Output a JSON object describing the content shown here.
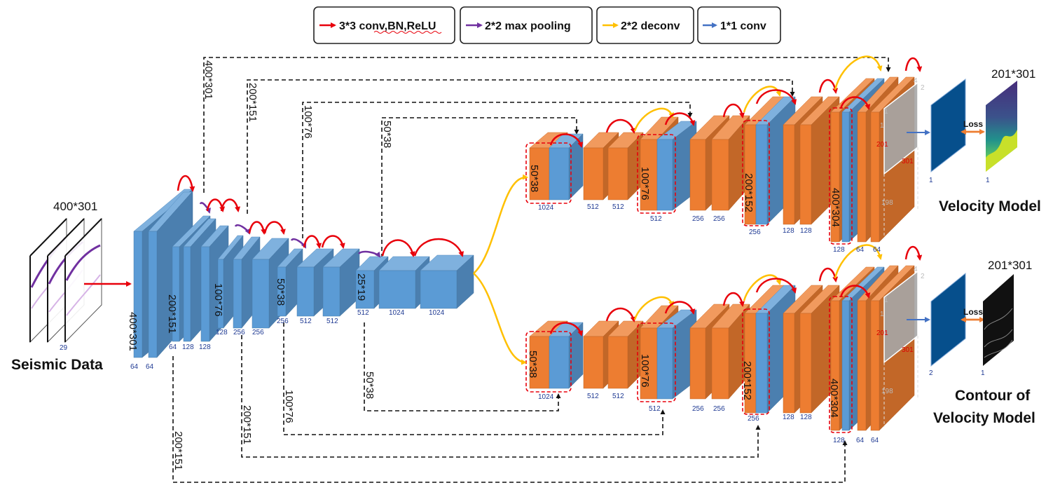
{
  "legend": {
    "conv": {
      "label": "3*3 conv,BN,ReLU",
      "color": "#e8000b"
    },
    "pool": {
      "label": "2*2 max pooling",
      "color": "#7030a0"
    },
    "deconv": {
      "label": "2*2 deconv",
      "color": "#ffc000"
    },
    "conv1": {
      "label": "1*1 conv",
      "color": "#4472c4"
    }
  },
  "colors": {
    "encoder_block": "#5b9bd5",
    "decoder_block": "#ed7d31",
    "output_block": "#1f5f99",
    "crop_block": "#a6a6a6",
    "loss_arrow": "#ed7d31"
  },
  "input": {
    "title": "400*301",
    "label": "Seismic Data",
    "channels": "29"
  },
  "encoder": {
    "dims": [
      "400*301",
      "200*151",
      "100*76",
      "50*38",
      "25*19"
    ],
    "channels": [
      "64",
      "64",
      "64",
      "128",
      "128",
      "128",
      "256",
      "256",
      "256",
      "512",
      "512",
      "512",
      "1024",
      "1024"
    ]
  },
  "skips_top": [
    "400*301",
    "200*151",
    "100*76",
    "50*38"
  ],
  "skips_bottom": [
    "50*38",
    "100*76",
    "200*151",
    "200*151"
  ],
  "decoder_top": {
    "dims": [
      "50*38",
      "100*76",
      "200*152",
      "400*304"
    ],
    "channels": [
      "1024",
      "512",
      "512",
      "512",
      "256",
      "256",
      "256",
      "128",
      "128",
      "128",
      "64",
      "64"
    ],
    "crop_numbers": [
      "4",
      "2",
      "1",
      "1",
      "201",
      "301",
      "198"
    ]
  },
  "decoder_bottom": {
    "dims": [
      "50*38",
      "100*76",
      "200*152",
      "400*304"
    ],
    "channels": [
      "1024",
      "512",
      "512",
      "512",
      "256",
      "256",
      "256",
      "128",
      "128",
      "128",
      "64",
      "64"
    ],
    "crop_numbers": [
      "4",
      "2",
      "1",
      "1",
      "201",
      "301",
      "198"
    ]
  },
  "output_top": {
    "title": "201*301",
    "loss": "Loss",
    "label": "Velocity Model",
    "channel_left": "1",
    "channel_right": "1"
  },
  "output_bottom": {
    "title": "201*301",
    "loss": "Loss",
    "label_line1": "Contour of",
    "label_line2": "Velocity Model",
    "channel_left": "2",
    "channel_right": "1"
  }
}
